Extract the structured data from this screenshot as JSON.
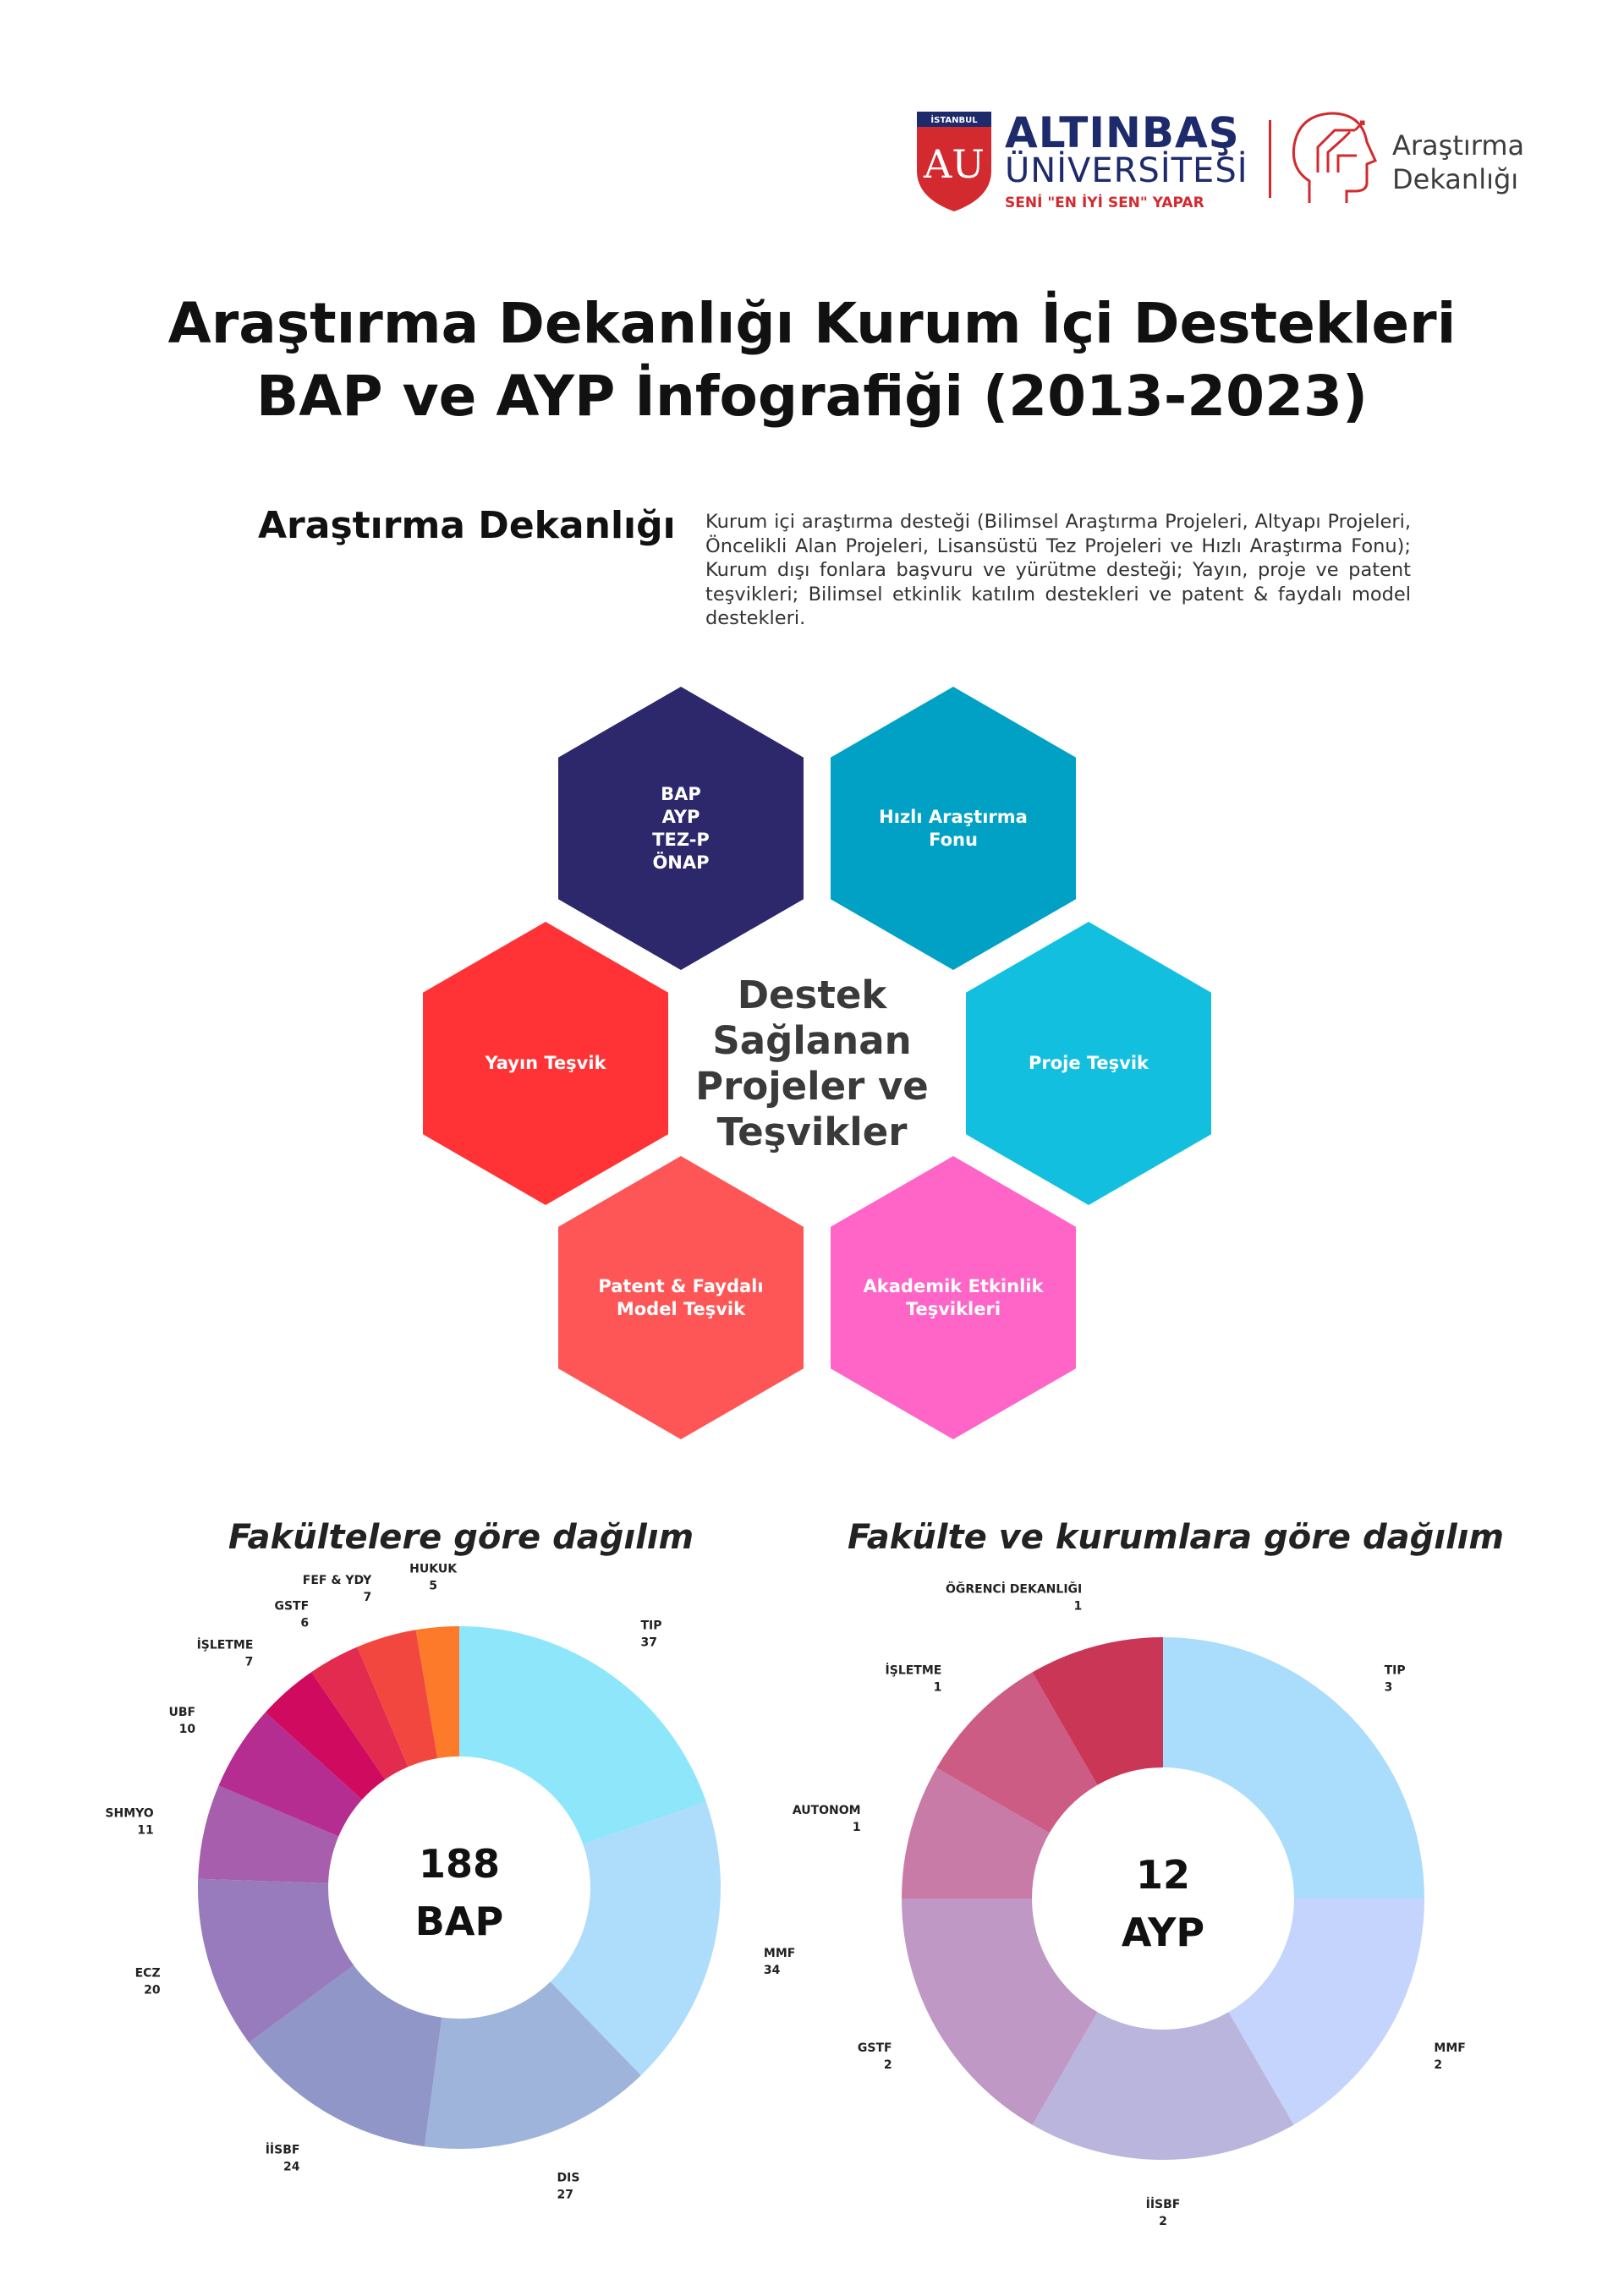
{
  "header": {
    "shield_top_text": "İSTANBUL",
    "shield_letters": "AU",
    "brand_name": "ALTINBAŞ",
    "brand_sub": "ÜNİVERSİTESİ",
    "brand_slogan": "SENİ \"EN İYİ SEN\" YAPAR",
    "dept_name_line1": "Araştırma",
    "dept_name_line2": "Dekanlığı",
    "colors": {
      "navy": "#1d2a6b",
      "red": "#d22a2f"
    }
  },
  "title": {
    "line1": "Araştırma Dekanlığı Kurum İçi Destekleri",
    "line2": "BAP ve AYP İnfografiği (2013-2023)"
  },
  "intro": {
    "heading": "Araştırma Dekanlığı",
    "text": "Kurum içi araştırma desteği (Bilimsel Araştırma Projeleri, Altyapı Projeleri, Öncelikli Alan Projeleri, Lisansüstü Tez Projeleri ve Hızlı Araştırma Fonu); Kurum dışı fonlara başvuru ve yürütme desteği; Yayın, proje ve patent teşvikleri; Bilimsel etkinlik katılım destekleri ve patent & faydalı model destekleri."
  },
  "hexagons": {
    "center": "Destek\nSağlanan\nProjeler ve\nTeşvikler",
    "items": [
      {
        "label": "BAP\nAYP\nTEZ-P\nÖNAP",
        "color": "#2d276c"
      },
      {
        "label": "Hızlı Araştırma\nFonu",
        "color": "#00a1c4"
      },
      {
        "label": "Yayın Teşvik",
        "color": "#ff3335"
      },
      {
        "label": "Proje Teşvik",
        "color": "#13bfdf"
      },
      {
        "label": "Patent & Faydalı\nModel Teşvik",
        "color": "#fe5656"
      },
      {
        "label": "Akademik Etkinlik\nTeşvikleri",
        "color": "#fe65c7"
      }
    ]
  },
  "chart_data": [
    {
      "type": "pie",
      "title": "Fakültelere göre dağılım",
      "center_value": "188",
      "center_label": "BAP",
      "categories": [
        "TIP",
        "MMF",
        "DIS",
        "İİSBF",
        "ECZ",
        "SHMYO",
        "UBF",
        "İŞLETME",
        "GSTF",
        "FEF & YDY",
        "HUKUK"
      ],
      "values": [
        37,
        34,
        27,
        24,
        20,
        11,
        10,
        7,
        6,
        7,
        5
      ],
      "colors": [
        "#8ee6fb",
        "#aedcfb",
        "#9fb4da",
        "#9196c8",
        "#977bbd",
        "#a75eac",
        "#b52d90",
        "#cf0a5f",
        "#e22b4e",
        "#f2473f",
        "#fd7a2b"
      ]
    },
    {
      "type": "pie",
      "title": "Fakülte ve kurumlara göre dağılım",
      "center_value": "12",
      "center_label": "AYP",
      "categories": [
        "TIP",
        "MMF",
        "İİSBF",
        "GSTF",
        "AUTONOM",
        "İŞLETME",
        "ÖĞRENCİ DEKANLIĞI"
      ],
      "values": [
        3,
        2,
        2,
        2,
        1,
        1,
        1
      ],
      "colors": [
        "#aadcfb",
        "#c4d4fd",
        "#bab5dd",
        "#bf98c5",
        "#c97ba7",
        "#cd5c84",
        "#c93656"
      ]
    }
  ]
}
